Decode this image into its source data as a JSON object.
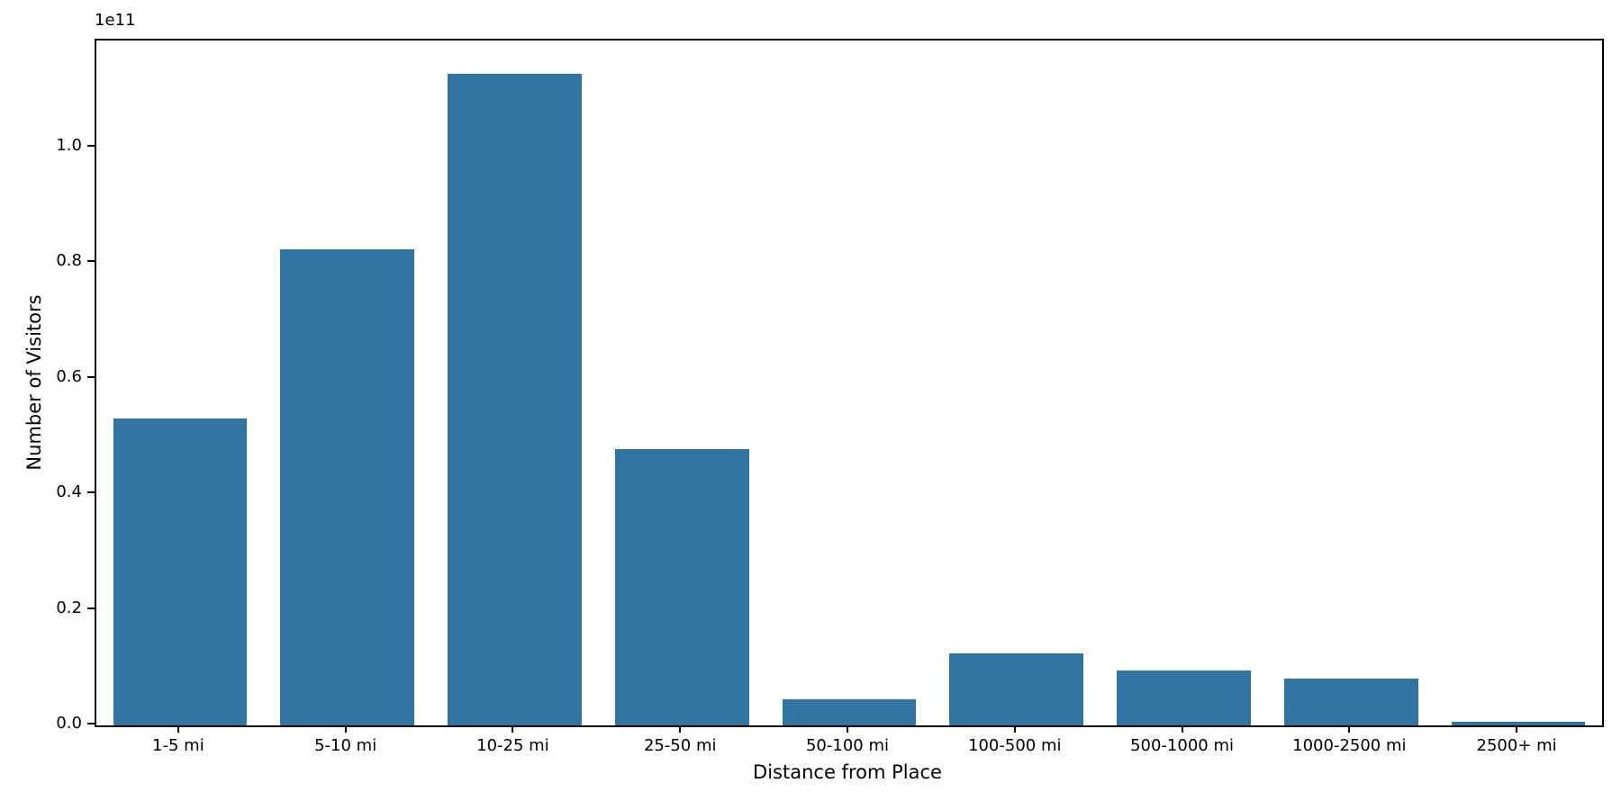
{
  "figure": {
    "background": "#ffffff"
  },
  "chart_data": {
    "type": "bar",
    "title": "",
    "xlabel": "Distance from Place",
    "ylabel": "Number of Visitors",
    "categories": [
      "1-5 mi",
      "5-10 mi",
      "10-25 mi",
      "25-50 mi",
      "50-100 mi",
      "100-500 mi",
      "500-1000 mi",
      "1000-2500 mi",
      "2500+ mi"
    ],
    "values": [
      53100000000.0,
      82300000000.0,
      112800000000.0,
      47800000000.0,
      4500000000.0,
      12500000000.0,
      9500000000.0,
      8100000000.0,
      600000000.0
    ],
    "bar_color": "#3274a1",
    "ylim": [
      0,
      118500000000.0
    ],
    "yticks": [
      0,
      20000000000.0,
      40000000000.0,
      60000000000.0,
      80000000000.0,
      100000000000.0
    ],
    "ytick_labels": [
      "0.0",
      "0.2",
      "0.4",
      "0.6",
      "0.8",
      "1.0"
    ],
    "y_scale_label": "1e11",
    "bar_rel_width": 0.8,
    "grid": false,
    "legend": "none",
    "spines": "full-box"
  }
}
